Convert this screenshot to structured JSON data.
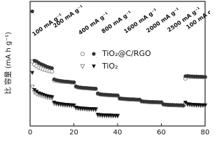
{
  "chart_data": {
    "type": "scatter",
    "ylabel": "比 容量 (mA h g⁻¹)",
    "x": [
      1,
      2,
      3,
      4,
      5,
      6,
      7,
      8,
      9,
      10,
      11,
      12,
      13,
      14,
      15,
      16,
      17,
      18,
      19,
      20,
      21,
      22,
      23,
      24,
      25,
      26,
      27,
      28,
      29,
      30,
      31,
      32,
      33,
      34,
      35,
      36,
      37,
      38,
      39,
      40,
      41,
      42,
      43,
      44,
      45,
      46,
      47,
      48,
      49,
      50,
      51,
      52,
      53,
      54,
      55,
      56,
      57,
      58,
      59,
      60,
      61,
      62,
      63,
      64,
      65,
      66,
      67,
      68,
      69,
      70,
      71,
      72,
      73,
      74,
      75,
      76,
      77,
      78,
      79,
      80
    ],
    "xlim": [
      0,
      80
    ],
    "xticks": [
      0,
      20,
      40,
      60,
      80
    ],
    "ylim": [
      0,
      800
    ],
    "series": [
      {
        "name": "TiO₂@C/RGO",
        "color": "#333333",
        "filled": [
          736,
          420,
          415,
          405,
          398,
          392,
          386,
          380,
          376,
          372,
          300,
          295,
          292,
          290,
          288,
          286,
          285,
          284,
          282,
          281,
          255,
          250,
          248,
          246,
          245,
          244,
          243,
          242,
          241,
          240,
          210,
          205,
          203,
          202,
          201,
          200,
          199,
          198,
          198,
          197,
          178,
          176,
          175,
          174,
          173,
          172,
          172,
          171,
          170,
          170,
          160,
          158,
          157,
          156,
          155,
          155,
          154,
          154,
          153,
          153,
          140,
          138,
          137,
          136,
          136,
          135,
          135,
          134,
          134,
          133,
          320,
          322,
          320,
          319,
          318,
          318,
          317,
          317,
          316,
          316
        ],
        "hollow": [
          415,
          395,
          385,
          375,
          370,
          365,
          360,
          356,
          352,
          350,
          292,
          290,
          288,
          286,
          285,
          284,
          283,
          282,
          280,
          279,
          252,
          248,
          246,
          244,
          243,
          242,
          241,
          240,
          239,
          238,
          207,
          203,
          201,
          200,
          199,
          198,
          197,
          196,
          196,
          195,
          176,
          174,
          173,
          172,
          171,
          170,
          170,
          169,
          168,
          168,
          158,
          156,
          155,
          154,
          153,
          153,
          152,
          152,
          151,
          151,
          138,
          136,
          135,
          134,
          134,
          133,
          133,
          132,
          132,
          131,
          305,
          318,
          317,
          316,
          316,
          315,
          315,
          314,
          314,
          313
        ]
      },
      {
        "name": "TiO₂",
        "color": "#111111",
        "filled": [
          340,
          230,
          220,
          210,
          205,
          200,
          195,
          190,
          188,
          185,
          150,
          145,
          142,
          140,
          138,
          136,
          135,
          134,
          133,
          132,
          118,
          115,
          113,
          112,
          111,
          110,
          109,
          108,
          108,
          107,
          72,
          70,
          69,
          68,
          68,
          67,
          67,
          66,
          66,
          65,
          null,
          null,
          null,
          null,
          null,
          null,
          null,
          null,
          null,
          null,
          null,
          null,
          null,
          null,
          null,
          null,
          null,
          null,
          null,
          null,
          null,
          null,
          null,
          null,
          null,
          null,
          null,
          null,
          null,
          null,
          150,
          140,
          138,
          136,
          135,
          134,
          134,
          133,
          133,
          132
        ],
        "hollow": [
          250,
          215,
          205,
          200,
          195,
          190,
          186,
          183,
          180,
          178,
          143,
          140,
          138,
          136,
          134,
          133,
          132,
          131,
          130,
          129,
          113,
          111,
          110,
          109,
          108,
          107,
          106,
          106,
          105,
          105,
          68,
          67,
          66,
          66,
          65,
          65,
          64,
          64,
          64,
          63,
          null,
          null,
          null,
          null,
          null,
          null,
          null,
          null,
          null,
          null,
          null,
          null,
          null,
          null,
          null,
          null,
          null,
          null,
          null,
          null,
          null,
          null,
          null,
          null,
          null,
          null,
          null,
          null,
          null,
          null,
          140,
          137,
          135,
          134,
          133,
          132,
          132,
          131,
          131,
          130
        ]
      }
    ],
    "annotations": [
      "100 mA g⁻¹",
      "200 mA g⁻¹",
      "400 mA g⁻¹",
      "800 mA g⁻¹",
      "1600 mA g⁻¹",
      "2000 mA g⁻¹",
      "2500 mA g⁻¹",
      "100 mA g⁻¹"
    ]
  }
}
